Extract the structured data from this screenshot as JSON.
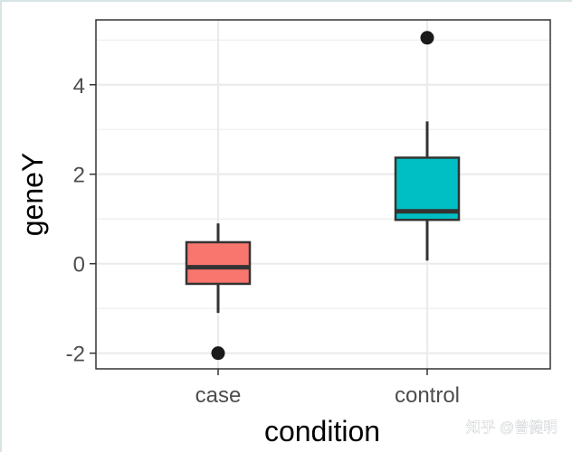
{
  "chart_data": {
    "type": "boxplot",
    "title": "",
    "xlabel": "condition",
    "ylabel": "geneY",
    "categories": [
      "case",
      "control"
    ],
    "ylim": [
      -2.35,
      5.45
    ],
    "yticks": [
      -2,
      0,
      2,
      4
    ],
    "ytick_labels": [
      "-2",
      "0",
      "2",
      "4"
    ],
    "grid": true,
    "boxes": [
      {
        "category": "case",
        "color": "#F8766D",
        "whisker_low": -1.1,
        "q1": -0.45,
        "median": -0.08,
        "q3": 0.48,
        "whisker_high": 0.9,
        "outliers": [
          -2.0
        ]
      },
      {
        "category": "control",
        "color": "#00BFC4",
        "whisker_low": 0.07,
        "q1": 0.98,
        "median": 1.17,
        "q3": 2.37,
        "whisker_high": 3.18,
        "outliers": [
          5.05
        ]
      }
    ]
  },
  "watermark": "知乎 @曾健明",
  "colors": {
    "panel_border": "#333333",
    "grid": "#ebebeb",
    "box_line": "#333333",
    "point": "#1a1a1a"
  }
}
